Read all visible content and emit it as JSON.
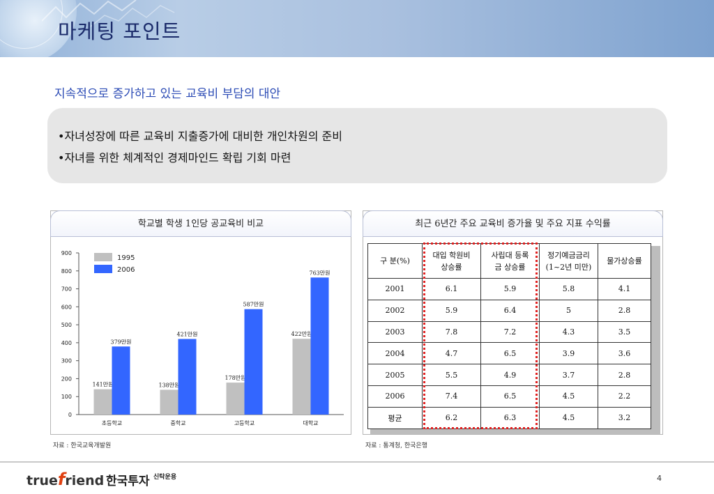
{
  "header": {
    "title": "마케팅 포인트"
  },
  "subtitle": "지속적으로 증가하고 있는 교육비 부담의 대안",
  "bullets": [
    "•자녀성장에 따른 교육비 지출증가에 대비한 개인차원의 준비",
    "•자녀를 위한 체계적인 경제마인드 확립 기회 마련"
  ],
  "left_panel": {
    "title": "학교별 학생 1인당 공교육비 비교",
    "source": "자료 : 한국교육개발원"
  },
  "right_panel": {
    "title": "최근 6년간 주요 교육비 증가율 및 주요 지표 수익률",
    "source": "자료 : 통계청, 한국은행"
  },
  "chart_data": {
    "type": "bar",
    "categories": [
      "초등학교",
      "중학교",
      "고등학교",
      "대학교"
    ],
    "series": [
      {
        "name": "1995",
        "values": [
          141,
          138,
          178,
          422
        ],
        "labels": [
          "141만원",
          "138만원",
          "178만원",
          "422만원"
        ],
        "color": "#c0c0c0"
      },
      {
        "name": "2006",
        "values": [
          379,
          421,
          587,
          763
        ],
        "labels": [
          "379만원",
          "421만원",
          "587만원",
          "763만원"
        ],
        "color": "#3366ff"
      }
    ],
    "ylim": [
      0,
      900
    ],
    "yticks": [
      "0",
      "100",
      "200",
      "300",
      "400",
      "500",
      "600",
      "700",
      "800",
      "900"
    ],
    "legend": "top-left"
  },
  "table": {
    "headers": [
      "구 분(%)",
      "대입 학원비 상승률",
      "사립대 등록금 상승률",
      "정기예금금리 (1~2년 미만)",
      "물가상승률"
    ],
    "header_lines": [
      [
        "구 분(%)"
      ],
      [
        "대입 학원비",
        "상승률"
      ],
      [
        "사립대 등록",
        "금 상승률"
      ],
      [
        "정기예금금리",
        "(1~2년 미만)"
      ],
      [
        "물가상승률"
      ]
    ],
    "rows": [
      [
        "2001",
        "6.1",
        "5.9",
        "5.8",
        "4.1"
      ],
      [
        "2002",
        "5.9",
        "6.4",
        "5",
        "2.8"
      ],
      [
        "2003",
        "7.8",
        "7.2",
        "4.3",
        "3.5"
      ],
      [
        "2004",
        "4.7",
        "6.5",
        "3.9",
        "3.6"
      ],
      [
        "2005",
        "5.5",
        "4.9",
        "3.7",
        "2.8"
      ],
      [
        "2006",
        "7.4",
        "6.5",
        "4.5",
        "2.2"
      ],
      [
        "평균",
        "6.2",
        "6.3",
        "4.5",
        "3.2"
      ]
    ]
  },
  "footer": {
    "logo_left": "true",
    "logo_f": "f",
    "logo_right": "riend",
    "logo_kr": "한국투자",
    "logo_sub": "신탁운용",
    "page": "4"
  }
}
